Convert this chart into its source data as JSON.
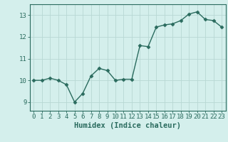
{
  "xlabel": "Humidex (Indice chaleur)",
  "x": [
    0,
    1,
    2,
    3,
    4,
    5,
    6,
    7,
    8,
    9,
    10,
    11,
    12,
    13,
    14,
    15,
    16,
    17,
    18,
    19,
    20,
    21,
    22,
    23
  ],
  "y": [
    10.0,
    10.0,
    10.1,
    10.0,
    9.8,
    9.0,
    9.4,
    10.2,
    10.55,
    10.45,
    10.0,
    10.05,
    10.05,
    11.6,
    11.55,
    12.45,
    12.55,
    12.6,
    12.75,
    13.05,
    13.15,
    12.8,
    12.75,
    12.45
  ],
  "line_color": "#2a6b5e",
  "marker": "D",
  "marker_size": 2.5,
  "line_width": 1.0,
  "bg_color": "#d4efec",
  "grid_color_major": "#b8d8d4",
  "grid_color_minor": "#c8e4e0",
  "tick_color": "#2a6b5e",
  "label_color": "#2a6b5e",
  "spine_color": "#2a6b5e",
  "ylim": [
    8.6,
    13.5
  ],
  "yticks": [
    9,
    10,
    11,
    12,
    13
  ],
  "xticks": [
    0,
    1,
    2,
    3,
    4,
    5,
    6,
    7,
    8,
    9,
    10,
    11,
    12,
    13,
    14,
    15,
    16,
    17,
    18,
    19,
    20,
    21,
    22,
    23
  ],
  "tick_fontsize": 6.5,
  "label_fontsize": 7.5
}
